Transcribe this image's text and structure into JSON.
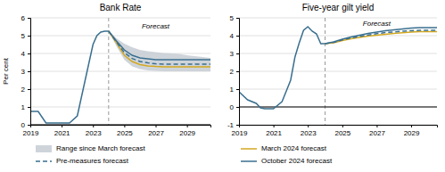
{
  "chart_data": [
    {
      "type": "line",
      "title": "Bank Rate",
      "ylabel": "Per cent",
      "xlim": [
        2019,
        2030.5
      ],
      "ylim": [
        0,
        6
      ],
      "xticks": [
        2019,
        2021,
        2023,
        2025,
        2027,
        2029
      ],
      "yticks": [
        0,
        1,
        2,
        3,
        4,
        5,
        6
      ],
      "grid": true,
      "legend": "bottom",
      "series": [
        {
          "name": "Range since March forecast",
          "type": "area",
          "color": "#c5cdd4",
          "x": [
            2024.0,
            2024.5,
            2025,
            2025.5,
            2026,
            2026.5,
            2027,
            2027.5,
            2028,
            2028.5,
            2029,
            2029.5,
            2030,
            2030.5
          ],
          "lower": [
            5.25,
            4.4,
            3.65,
            3.28,
            3.12,
            3.05,
            3.02,
            3.0,
            3.0,
            3.0,
            3.0,
            3.0,
            3.0,
            3.0
          ],
          "upper": [
            5.25,
            4.85,
            4.55,
            4.35,
            4.2,
            4.12,
            4.07,
            4.03,
            4.0,
            3.97,
            3.9,
            3.85,
            3.8,
            3.75
          ]
        },
        {
          "type": "line",
          "color": "#3a6f8f",
          "x": [
            2019,
            2019.5,
            2020,
            2020.25,
            2020.5,
            2021,
            2021.5,
            2022,
            2022.25,
            2022.5,
            2022.75,
            2023,
            2023.25,
            2023.5,
            2023.75,
            2024.0
          ],
          "values": [
            0.75,
            0.75,
            0.1,
            0.1,
            0.1,
            0.1,
            0.1,
            0.5,
            1.5,
            2.5,
            3.5,
            4.5,
            5.0,
            5.2,
            5.25,
            5.25
          ]
        },
        {
          "name": "March 2024 forecast",
          "type": "line",
          "color": "#d4a820",
          "x": [
            2024.0,
            2024.5,
            2025,
            2025.5,
            2026,
            2026.5,
            2027,
            2027.5,
            2028,
            2028.5,
            2029,
            2029.5,
            2030,
            2030.5
          ],
          "values": [
            5.25,
            4.6,
            3.9,
            3.55,
            3.38,
            3.3,
            3.27,
            3.25,
            3.25,
            3.25,
            3.25,
            3.25,
            3.25,
            3.25
          ]
        },
        {
          "name": "Pre-measures forecast",
          "type": "line",
          "color": "#3a6f8f",
          "line_style": "dashed",
          "x": [
            2024.0,
            2024.5,
            2025,
            2025.5,
            2026,
            2026.5,
            2027,
            2027.5,
            2028,
            2028.5,
            2029,
            2029.5,
            2030,
            2030.5
          ],
          "values": [
            5.25,
            4.65,
            4.05,
            3.72,
            3.55,
            3.47,
            3.42,
            3.4,
            3.4,
            3.4,
            3.4,
            3.4,
            3.4,
            3.4
          ]
        },
        {
          "name": "October 2024 forecast",
          "type": "line",
          "color": "#3a6f8f",
          "x": [
            2024.0,
            2024.5,
            2025,
            2025.5,
            2026,
            2026.5,
            2027,
            2027.5,
            2028,
            2028.5,
            2029,
            2029.5,
            2030,
            2030.5
          ],
          "values": [
            5.25,
            4.7,
            4.2,
            3.9,
            3.75,
            3.7,
            3.65,
            3.65,
            3.65,
            3.65,
            3.65,
            3.65,
            3.65,
            3.65
          ]
        }
      ],
      "reference_lines": [
        {
          "x": 2024.0,
          "line_style": "dashed"
        },
        {
          "y": 0
        }
      ],
      "annotations": [
        {
          "text": "Forecast",
          "x": 2027.0,
          "y": 5.5
        }
      ]
    },
    {
      "type": "line",
      "title": "Five-year gilt yield",
      "xlim": [
        2019,
        2030.5
      ],
      "ylim": [
        -1,
        5
      ],
      "xticks": [
        2019,
        2021,
        2023,
        2025,
        2027,
        2029
      ],
      "yticks": [
        -1,
        0,
        1,
        2,
        3,
        4,
        5
      ],
      "grid": true,
      "series": [
        {
          "type": "line",
          "color": "#3a6f8f",
          "x": [
            2019,
            2019.5,
            2020,
            2020.25,
            2020.5,
            2021,
            2021.5,
            2022,
            2022.25,
            2022.5,
            2022.75,
            2023,
            2023.25,
            2023.5,
            2023.75,
            2024.0
          ],
          "values": [
            0.85,
            0.4,
            0.2,
            -0.05,
            -0.1,
            -0.1,
            0.3,
            1.5,
            2.8,
            3.6,
            4.3,
            4.5,
            4.25,
            4.1,
            3.55,
            3.55
          ]
        },
        {
          "type": "line",
          "color": "#d4a820",
          "x": [
            2024.0,
            2024.5,
            2025,
            2025.5,
            2026,
            2026.5,
            2027,
            2027.5,
            2028,
            2028.5,
            2029,
            2029.5,
            2030,
            2030.5
          ],
          "values": [
            3.55,
            3.6,
            3.72,
            3.82,
            3.9,
            3.97,
            4.02,
            4.07,
            4.12,
            4.16,
            4.2,
            4.22,
            4.22,
            4.22
          ]
        },
        {
          "type": "line",
          "color": "#3a6f8f",
          "line_style": "dashed",
          "x": [
            2024.0,
            2024.5,
            2025,
            2025.5,
            2026,
            2026.5,
            2027,
            2027.5,
            2028,
            2028.5,
            2029,
            2029.5,
            2030,
            2030.5
          ],
          "values": [
            3.55,
            3.62,
            3.76,
            3.87,
            3.96,
            4.04,
            4.11,
            4.17,
            4.21,
            4.25,
            4.28,
            4.3,
            4.3,
            4.3
          ]
        },
        {
          "type": "line",
          "color": "#3a6f8f",
          "x": [
            2024.0,
            2024.5,
            2025,
            2025.5,
            2026,
            2026.5,
            2027,
            2027.5,
            2028,
            2028.5,
            2029,
            2029.5,
            2030,
            2030.5
          ],
          "values": [
            3.55,
            3.65,
            3.8,
            3.92,
            4.02,
            4.12,
            4.2,
            4.28,
            4.33,
            4.38,
            4.42,
            4.45,
            4.45,
            4.45
          ]
        }
      ],
      "reference_lines": [
        {
          "x": 2024.0,
          "line_style": "dashed"
        },
        {
          "y": 0
        }
      ],
      "annotations": [
        {
          "text": "Forecast",
          "x": 2027.0,
          "y": 4.65
        }
      ]
    }
  ]
}
